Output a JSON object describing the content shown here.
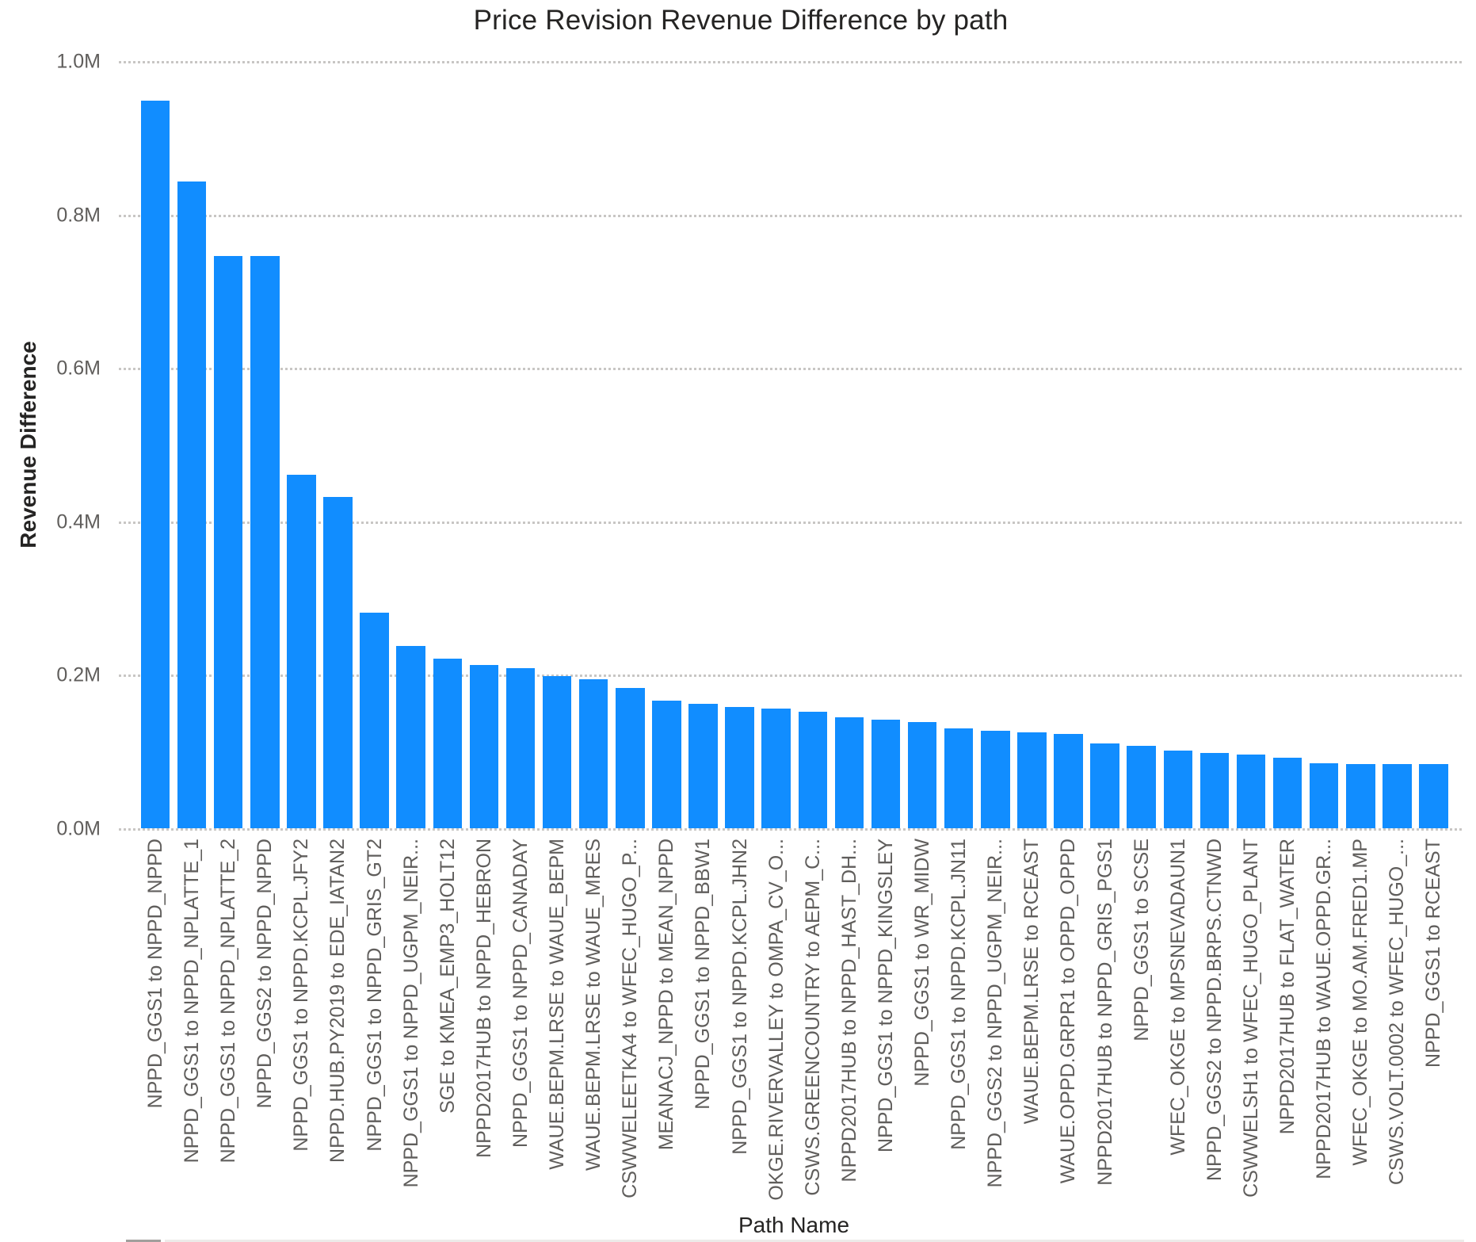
{
  "chart_data": {
    "type": "bar",
    "title": "Price Revision Revenue Difference by path",
    "xlabel": "Path Name",
    "ylabel": "Revenue Difference",
    "ylim": [
      0,
      1000000
    ],
    "yticks": [
      "0.0M",
      "0.2M",
      "0.4M",
      "0.6M",
      "0.8M",
      "1.0M"
    ],
    "grid": true,
    "legend": null,
    "bar_color": "#118DFF",
    "categories": [
      "NPPD_GGS1 to NPPD_NPPD",
      "NPPD_GGS1 to NPPD_NPLATTE_1",
      "NPPD_GGS1 to NPPD_NPLATTE_2",
      "NPPD_GGS2 to NPPD_NPPD",
      "NPPD_GGS1 to NPPD.KCPL.JFY2",
      "NPPD.HUB.PY2019 to EDE_IATAN2",
      "NPPD_GGS1 to NPPD_GRIS_GT2",
      "NPPD_GGS1 to NPPD_UGPM_NEIR...",
      "SGE to KMEA_EMP3_HOLT12",
      "NPPD2017HUB to NPPD_HEBRON",
      "NPPD_GGS1 to NPPD_CANADAY",
      "WAUE.BEPM.LRSE to WAUE_BEPM",
      "WAUE.BEPM.LRSE to WAUE_MRES",
      "CSWWELEETKA4 to WFEC_HUGO_P...",
      "MEANACJ_NPPD to MEAN_NPPD",
      "NPPD_GGS1 to NPPD_BBW1",
      "NPPD_GGS1 to NPPD.KCPL.JHN2",
      "OKGE.RIVERVALLEY to OMPA_CV_O...",
      "CSWS.GREENCOUNTRY to AEPM_C...",
      "NPPD2017HUB to NPPD_HAST_DH...",
      "NPPD_GGS1 to NPPD_KINGSLEY",
      "NPPD_GGS1 to WR_MIDW",
      "NPPD_GGS1 to NPPD.KCPL.JN11",
      "NPPD_GGS2 to NPPD_UGPM_NEIR...",
      "WAUE.BEPM.LRSE to RCEAST",
      "WAUE.OPPD.GRPR1 to OPPD_OPPD",
      "NPPD2017HUB to NPPD_GRIS_PGS1",
      "NPPD_GGS1 to SCSE",
      "WFEC_OKGE to MPSNEVADAUN1",
      "NPPD_GGS2 to NPPD.BRPS.CTNWD",
      "CSWWELSH1 to WFEC_HUGO_PLANT",
      "NPPD2017HUB to FLAT_WATER",
      "NPPD2017HUB to WAUE.OPPD.GR...",
      "WFEC_OKGE to MO.AM.FRED1.MP",
      "CSWS.VOLT.0002 to WFEC_HUGO_...",
      "NPPD_GGS1 to RCEAST"
    ],
    "values": [
      949000,
      844000,
      747000,
      747000,
      462000,
      433000,
      282000,
      238000,
      222000,
      213000,
      209000,
      199000,
      195000,
      183000,
      167000,
      163000,
      159000,
      157000,
      152000,
      145000,
      142000,
      139000,
      131000,
      128000,
      126000,
      124000,
      111000,
      108000,
      102000,
      99000,
      97000,
      92000,
      85000,
      84000,
      84000,
      84000
    ]
  },
  "header": {
    "title": "Price Revision Revenue Difference by path"
  },
  "axes": {
    "y_title": "Revenue Difference",
    "x_title": "Path Name",
    "y_ticks": [
      {
        "label": "1.0M",
        "value": 1000000
      },
      {
        "label": "0.8M",
        "value": 800000
      },
      {
        "label": "0.6M",
        "value": 600000
      },
      {
        "label": "0.4M",
        "value": 400000
      },
      {
        "label": "0.2M",
        "value": 200000
      },
      {
        "label": "0.0M",
        "value": 0
      }
    ]
  },
  "colors": {
    "bar": "#118DFF",
    "gridline": "#C8C6C4",
    "text": "#605E5C",
    "title": "#252423"
  }
}
